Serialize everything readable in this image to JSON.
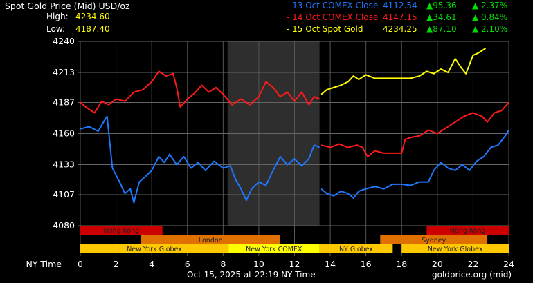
{
  "header": {
    "title": "Spot Gold Price (Mid) USD/oz",
    "high_label": "High:",
    "high": "4234.60",
    "low_label": "Low:",
    "low": "4187.40"
  },
  "legend": [
    {
      "label": "- 13 Oct COMEX Close",
      "price": "4112.54",
      "change": "▲95.36",
      "pct": "▲ 2.37%",
      "color": "#1e78ff"
    },
    {
      "label": "- 14 Oct COMEX Close",
      "price": "4147.15",
      "change": "▲34.61",
      "pct": "▲ 0.84%",
      "color": "#ff1a1a"
    },
    {
      "label": "- 15 Oct Spot Gold",
      "price": "4234.25",
      "change": "▲87.10",
      "pct": "▲ 2.10%",
      "color": "#ffff00"
    }
  ],
  "colors": {
    "up": "#00dd00",
    "high_low": "#ffff00"
  },
  "footer": {
    "timestamp": "Oct 15, 2025 at 22:19 NY Time",
    "source": "goldprice.org (mid)"
  },
  "chart_data": {
    "type": "line",
    "xlabel": "NY Time",
    "xlim": [
      0,
      24
    ],
    "ylim": [
      4080,
      4240
    ],
    "xticks": [
      "0",
      "2",
      "4",
      "6",
      "8",
      "10",
      "12",
      "14",
      "16",
      "18",
      "20",
      "22",
      "24"
    ],
    "yticks": [
      "4240",
      "4213",
      "4187",
      "4160",
      "4133",
      "4107",
      "4080"
    ],
    "grid": true,
    "shaded_hours": [
      8.25,
      13.4
    ],
    "sessions": [
      {
        "name": "Hong Kong",
        "start": 0,
        "end": 4.6,
        "row": 0,
        "color": "#cc0000"
      },
      {
        "name": "Hong Kong",
        "start": 19.4,
        "end": 24,
        "row": 0,
        "color": "#cc0000"
      },
      {
        "name": "London",
        "start": 3.4,
        "end": 11.2,
        "row": 1,
        "color": "#e07000"
      },
      {
        "name": "Sydney",
        "start": 16.8,
        "end": 22.8,
        "row": 1,
        "color": "#e07000"
      },
      {
        "name": "New York Globex",
        "start": 0,
        "end": 8.3,
        "row": 2,
        "color": "#ffc800"
      },
      {
        "name": "New York COMEX",
        "start": 8.3,
        "end": 13.4,
        "row": 2,
        "color": "#ffff00"
      },
      {
        "name": "NY Globex",
        "start": 13.4,
        "end": 17.5,
        "row": 2,
        "color": "#ffc800"
      },
      {
        "name": "New York Globex",
        "start": 18,
        "end": 24,
        "row": 2,
        "color": "#ffc800"
      }
    ],
    "series": [
      {
        "color": "#1e78ff",
        "segments": [
          [
            [
              0,
              4164
            ],
            [
              0.5,
              4166
            ],
            [
              1,
              4162
            ],
            [
              1.3,
              4170
            ],
            [
              1.5,
              4175
            ],
            [
              1.6,
              4160
            ],
            [
              1.8,
              4130
            ],
            [
              2.2,
              4118
            ],
            [
              2.5,
              4108
            ],
            [
              2.8,
              4112
            ],
            [
              3,
              4100
            ],
            [
              3.3,
              4118
            ],
            [
              3.6,
              4122
            ],
            [
              4,
              4128
            ],
            [
              4.4,
              4140
            ],
            [
              4.7,
              4135
            ],
            [
              5,
              4142
            ],
            [
              5.4,
              4133
            ],
            [
              5.8,
              4140
            ],
            [
              6.2,
              4130
            ],
            [
              6.6,
              4135
            ],
            [
              7,
              4128
            ],
            [
              7.5,
              4136
            ],
            [
              8,
              4130
            ],
            [
              8.4,
              4132
            ],
            [
              8.7,
              4120
            ],
            [
              9,
              4112
            ],
            [
              9.3,
              4102
            ],
            [
              9.6,
              4112
            ],
            [
              10,
              4118
            ],
            [
              10.4,
              4115
            ],
            [
              10.8,
              4128
            ],
            [
              11.2,
              4140
            ],
            [
              11.6,
              4133
            ],
            [
              12,
              4138
            ],
            [
              12.4,
              4132
            ],
            [
              12.8,
              4138
            ],
            [
              13.1,
              4150
            ],
            [
              13.4,
              4148
            ]
          ],
          [
            [
              13.5,
              4112
            ],
            [
              13.8,
              4108
            ],
            [
              14.2,
              4106
            ],
            [
              14.6,
              4110
            ],
            [
              15,
              4108
            ],
            [
              15.3,
              4104
            ],
            [
              15.6,
              4110
            ],
            [
              16,
              4112
            ],
            [
              16.5,
              4114
            ],
            [
              17,
              4112
            ],
            [
              17.5,
              4116
            ],
            [
              18,
              4116
            ],
            [
              18.5,
              4115
            ],
            [
              19,
              4118
            ],
            [
              19.5,
              4118
            ],
            [
              19.8,
              4128
            ],
            [
              20.2,
              4135
            ],
            [
              20.6,
              4130
            ],
            [
              21,
              4128
            ],
            [
              21.4,
              4133
            ],
            [
              21.8,
              4128
            ],
            [
              22.2,
              4136
            ],
            [
              22.6,
              4140
            ],
            [
              23,
              4148
            ],
            [
              23.4,
              4150
            ],
            [
              23.8,
              4158
            ],
            [
              24,
              4163
            ]
          ]
        ]
      },
      {
        "color": "#ff1a1a",
        "segments": [
          [
            [
              0,
              4187
            ],
            [
              0.4,
              4182
            ],
            [
              0.8,
              4178
            ],
            [
              1.2,
              4188
            ],
            [
              1.6,
              4185
            ],
            [
              2,
              4190
            ],
            [
              2.5,
              4188
            ],
            [
              3,
              4196
            ],
            [
              3.5,
              4198
            ],
            [
              4,
              4205
            ],
            [
              4.4,
              4214
            ],
            [
              4.8,
              4210
            ],
            [
              5.2,
              4212
            ],
            [
              5.4,
              4200
            ],
            [
              5.6,
              4183
            ],
            [
              6,
              4190
            ],
            [
              6.4,
              4195
            ],
            [
              6.8,
              4202
            ],
            [
              7.2,
              4196
            ],
            [
              7.6,
              4200
            ],
            [
              8,
              4194
            ],
            [
              8.5,
              4185
            ],
            [
              9,
              4190
            ],
            [
              9.5,
              4185
            ],
            [
              10,
              4192
            ],
            [
              10.4,
              4205
            ],
            [
              10.8,
              4200
            ],
            [
              11.2,
              4192
            ],
            [
              11.6,
              4196
            ],
            [
              12,
              4188
            ],
            [
              12.4,
              4196
            ],
            [
              12.8,
              4185
            ],
            [
              13.1,
              4192
            ],
            [
              13.4,
              4190
            ]
          ],
          [
            [
              13.5,
              4150
            ],
            [
              14,
              4148
            ],
            [
              14.5,
              4151
            ],
            [
              15,
              4148
            ],
            [
              15.5,
              4150
            ],
            [
              15.8,
              4148
            ],
            [
              16.1,
              4140
            ],
            [
              16.5,
              4145
            ],
            [
              17,
              4143
            ],
            [
              17.5,
              4143
            ],
            [
              18,
              4143
            ],
            [
              18.2,
              4155
            ],
            [
              18.6,
              4157
            ],
            [
              19,
              4158
            ],
            [
              19.5,
              4163
            ],
            [
              20,
              4160
            ],
            [
              20.5,
              4165
            ],
            [
              21,
              4170
            ],
            [
              21.5,
              4175
            ],
            [
              22,
              4178
            ],
            [
              22.5,
              4175
            ],
            [
              22.8,
              4170
            ],
            [
              23.2,
              4178
            ],
            [
              23.6,
              4180
            ],
            [
              24,
              4187
            ]
          ]
        ]
      },
      {
        "color": "#ffff00",
        "segments": [
          [
            [
              13.5,
              4194
            ],
            [
              13.8,
              4198
            ],
            [
              14.2,
              4200
            ],
            [
              14.6,
              4202
            ],
            [
              15,
              4205
            ],
            [
              15.3,
              4210
            ],
            [
              15.6,
              4207
            ],
            [
              16,
              4211
            ],
            [
              16.5,
              4208
            ],
            [
              17,
              4208
            ],
            [
              17.5,
              4208
            ],
            [
              18,
              4208
            ],
            [
              18.5,
              4208
            ],
            [
              19,
              4210
            ],
            [
              19.4,
              4214
            ],
            [
              19.8,
              4212
            ],
            [
              20.2,
              4216
            ],
            [
              20.6,
              4213
            ],
            [
              21,
              4225
            ],
            [
              21.3,
              4218
            ],
            [
              21.6,
              4212
            ],
            [
              22,
              4228
            ],
            [
              22.3,
              4230
            ],
            [
              22.7,
              4234
            ]
          ]
        ]
      }
    ]
  }
}
